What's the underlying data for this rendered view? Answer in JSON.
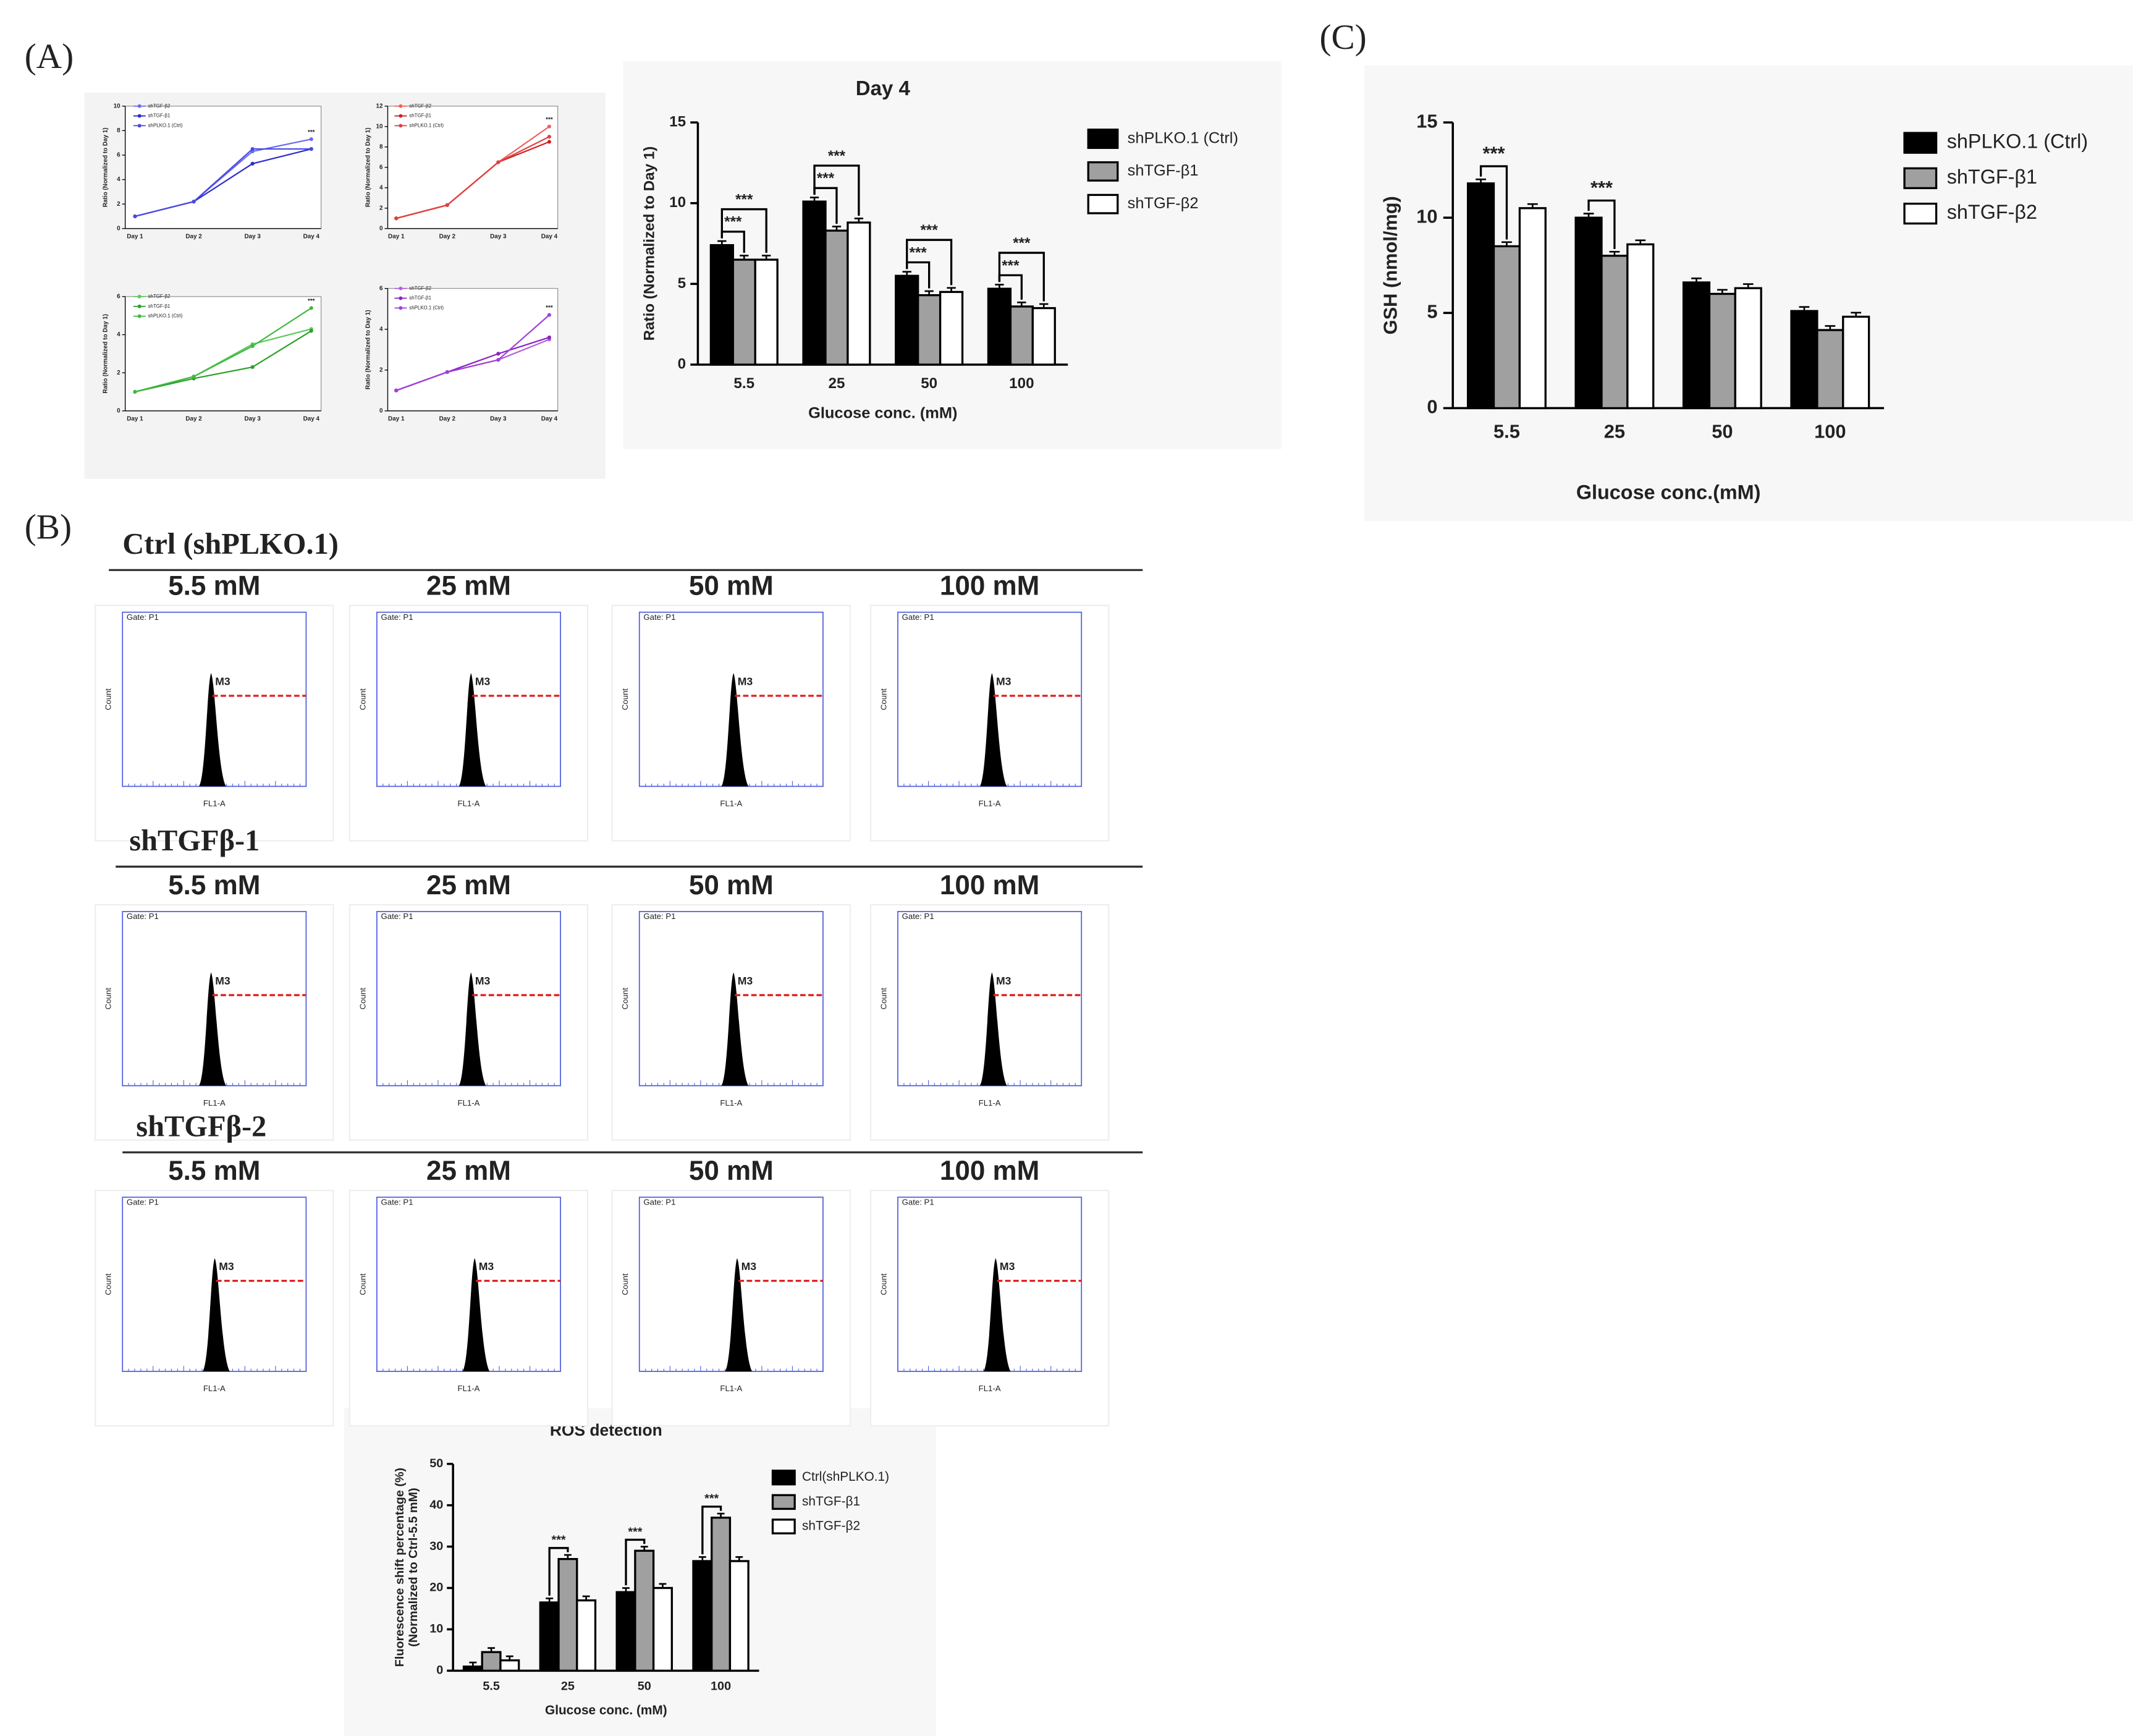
{
  "labels": {
    "a": "(A)",
    "b": "(B)",
    "c": "(C)"
  },
  "chart_data": [
    {
      "type": "line",
      "ylabel": "Ratio (Normalized to Day 1)",
      "categories": [
        "Day 1",
        "Day 2",
        "Day 3",
        "Day 4"
      ],
      "ylim": [
        0,
        10
      ],
      "yticks": [
        0,
        2,
        4,
        6,
        8,
        10
      ],
      "annotations": [
        "***"
      ],
      "series": [
        {
          "name": "shTGF-β2",
          "color": "#6a6af0",
          "values": [
            1,
            2.2,
            6.3,
            7.3
          ]
        },
        {
          "name": "shTGF-β1",
          "color": "#2b2bd0",
          "values": [
            1,
            2.2,
            5.3,
            6.5
          ]
        },
        {
          "name": "shPLKO.1 (Ctrl)",
          "color": "#4a4ae0",
          "values": [
            1,
            2.2,
            6.5,
            6.5
          ]
        }
      ]
    },
    {
      "type": "line",
      "ylabel": "Ratio (Normalized to Day 1)",
      "categories": [
        "Day 1",
        "Day 2",
        "Day 3",
        "Day 4"
      ],
      "ylim": [
        0,
        12
      ],
      "yticks": [
        0,
        2,
        4,
        6,
        8,
        10,
        12
      ],
      "annotations": [
        "***"
      ],
      "series": [
        {
          "name": "shTGF-β2",
          "color": "#f06060",
          "values": [
            1,
            2.3,
            6.5,
            10
          ]
        },
        {
          "name": "shTGF-β1",
          "color": "#d02020",
          "values": [
            1,
            2.3,
            6.5,
            8.5
          ]
        },
        {
          "name": "shPLKO.1 (Ctrl)",
          "color": "#e04040",
          "values": [
            1,
            2.3,
            6.5,
            9
          ]
        }
      ]
    },
    {
      "type": "line",
      "ylabel": "Ratio (Normalized to Day 1)",
      "categories": [
        "Day 1",
        "Day 2",
        "Day 3",
        "Day 4"
      ],
      "ylim": [
        0,
        6
      ],
      "yticks": [
        0,
        2,
        4,
        6
      ],
      "annotations": [
        "***"
      ],
      "series": [
        {
          "name": "shTGF-β2",
          "color": "#5cc85c",
          "values": [
            1,
            1.8,
            3.5,
            4.3
          ]
        },
        {
          "name": "shTGF-β1",
          "color": "#2aa02a",
          "values": [
            1,
            1.7,
            2.3,
            4.2
          ]
        },
        {
          "name": "shPLKO.1 (Ctrl)",
          "color": "#40b840",
          "values": [
            1,
            1.8,
            3.4,
            5.4
          ]
        }
      ]
    },
    {
      "type": "line",
      "ylabel": "Ratio (Normalized to Day 1)",
      "categories": [
        "Day 1",
        "Day 2",
        "Day 3",
        "Day 4"
      ],
      "ylim": [
        0,
        6
      ],
      "yticks": [
        0,
        2,
        4,
        6
      ],
      "annotations": [
        "***"
      ],
      "series": [
        {
          "name": "shTGF-β2",
          "color": "#b060e0",
          "values": [
            1,
            1.9,
            2.5,
            3.5
          ]
        },
        {
          "name": "shTGF-β1",
          "color": "#8a20c0",
          "values": [
            1,
            1.9,
            2.8,
            3.6
          ]
        },
        {
          "name": "shPLKO.1 (Ctrl)",
          "color": "#a040d8",
          "values": [
            1,
            1.9,
            2.5,
            4.7
          ]
        }
      ]
    },
    {
      "type": "bar",
      "title": "Day 4",
      "ylabel": "Ratio (Normalized to Day 1)",
      "xlabel": "Glucose conc. (mM)",
      "categories": [
        "5.5",
        "25",
        "50",
        "100"
      ],
      "ylim": [
        0,
        15
      ],
      "yticks": [
        0,
        5,
        10,
        15
      ],
      "annotations": [
        "***",
        "***",
        "***",
        "***",
        "***",
        "***",
        "***",
        "***"
      ],
      "series": [
        {
          "name": "shPLKO.1 (Ctrl)",
          "color": "#000000",
          "values": [
            7.4,
            10.1,
            5.5,
            4.7
          ]
        },
        {
          "name": "shTGF-β1",
          "color": "#a0a0a0",
          "values": [
            6.5,
            8.3,
            4.3,
            3.6
          ]
        },
        {
          "name": "shTGF-β2",
          "color": "#ffffff",
          "values": [
            6.5,
            8.8,
            4.5,
            3.5
          ]
        }
      ]
    },
    {
      "type": "bar",
      "ylabel": "GSH (nmol/mg)",
      "xlabel": "Glucose conc.(mM)",
      "categories": [
        "5.5",
        "25",
        "50",
        "100"
      ],
      "ylim": [
        0,
        15
      ],
      "yticks": [
        0,
        5,
        10,
        15
      ],
      "annotations": [
        "***",
        "***"
      ],
      "series": [
        {
          "name": "shPLKO.1 (Ctrl)",
          "color": "#000000",
          "values": [
            11.8,
            10,
            6.6,
            5.1
          ]
        },
        {
          "name": "shTGF-β1",
          "color": "#a0a0a0",
          "values": [
            8.5,
            8,
            6,
            4.1
          ]
        },
        {
          "name": "shTGF-β2",
          "color": "#ffffff",
          "values": [
            10.5,
            8.6,
            6.3,
            4.8
          ]
        }
      ]
    },
    {
      "type": "bar",
      "title": "ROS detection",
      "ylabel": [
        "Fluorescence shift percentage (%)",
        "(Normalized to Ctrl-5.5 mM)"
      ],
      "xlabel": "Glucose conc. (mM)",
      "categories": [
        "5.5",
        "25",
        "50",
        "100"
      ],
      "ylim": [
        0,
        50
      ],
      "yticks": [
        0,
        10,
        20,
        30,
        40,
        50
      ],
      "annotations": [
        "***",
        "***",
        "***"
      ],
      "series": [
        {
          "name": "Ctrl(shPLKO.1)",
          "color": "#000000",
          "values": [
            1,
            16.5,
            19,
            26.5
          ]
        },
        {
          "name": "shTGF-β1",
          "color": "#a0a0a0",
          "values": [
            4.5,
            27,
            29,
            37
          ]
        },
        {
          "name": "shTGF-β2",
          "color": "#ffffff",
          "values": [
            2.5,
            17,
            20,
            26.5
          ]
        }
      ]
    }
  ],
  "flow": {
    "groups": [
      "Ctrl (shPLKO.1)",
      "shTGFβ-1",
      "shTGFβ-2"
    ],
    "concentrations": [
      "5.5 mM",
      "25 mM",
      "50 mM",
      "100 mM"
    ],
    "gate": "Gate: P1",
    "marker": "M3",
    "x_label": "FL1-A",
    "y_label": "Count"
  }
}
